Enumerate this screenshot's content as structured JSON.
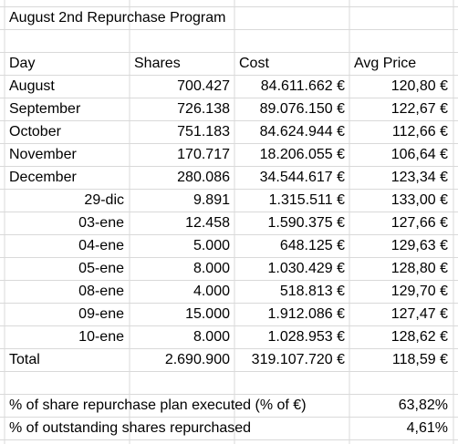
{
  "title": "August 2nd Repurchase Program",
  "table": {
    "header": [
      "Day",
      "Shares",
      "Cost",
      "Avg Price"
    ],
    "months": [
      [
        "August",
        "700.427",
        "84.611.662 €",
        "120,80 €"
      ],
      [
        "September",
        "726.138",
        "89.076.150 €",
        "122,67 €"
      ],
      [
        "October",
        "751.183",
        "84.624.944 €",
        "112,66 €"
      ],
      [
        "November",
        "170.717",
        "18.206.055 €",
        "106,64 €"
      ],
      [
        "December",
        "280.086",
        "34.544.617 €",
        "123,34 €"
      ]
    ],
    "days": [
      [
        "29-dic",
        "9.891",
        "1.315.511 €",
        "133,00 €"
      ],
      [
        "03-ene",
        "12.458",
        "1.590.375 €",
        "127,66 €"
      ],
      [
        "04-ene",
        "5.000",
        "648.125 €",
        "129,63 €"
      ],
      [
        "05-ene",
        "8.000",
        "1.030.429 €",
        "128,80 €"
      ],
      [
        "08-ene",
        "4.000",
        "518.813 €",
        "129,70 €"
      ],
      [
        "09-ene",
        "15.000",
        "1.912.086 €",
        "127,47 €"
      ],
      [
        "10-ene",
        "8.000",
        "1.028.953 €",
        "128,62 €"
      ]
    ],
    "total": [
      "Total",
      "2.690.900",
      "319.107.720 €",
      "118,59 €"
    ]
  },
  "summary": [
    [
      "% of share repurchase plan executed (% of €)",
      "63,82%"
    ],
    [
      "% of outstanding shares repurchased",
      "4,61%"
    ]
  ]
}
